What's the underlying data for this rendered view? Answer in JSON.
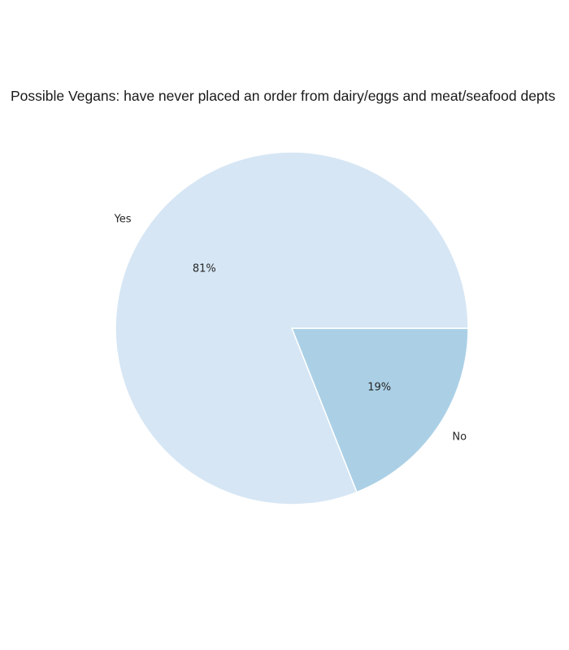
{
  "chart_data": {
    "type": "pie",
    "title": "Possible Vegans: have never placed an order from dairy/eggs and meat/seafood depts",
    "categories": [
      "No",
      "Yes"
    ],
    "values": [
      19,
      81
    ],
    "percent_labels": [
      "19%",
      "81%"
    ],
    "colors": [
      "#abd0e6",
      "#d6e6f4"
    ],
    "edge_color": "#ffffff",
    "start_angle_deg": 0,
    "direction": "clockwise",
    "legend": "none"
  }
}
